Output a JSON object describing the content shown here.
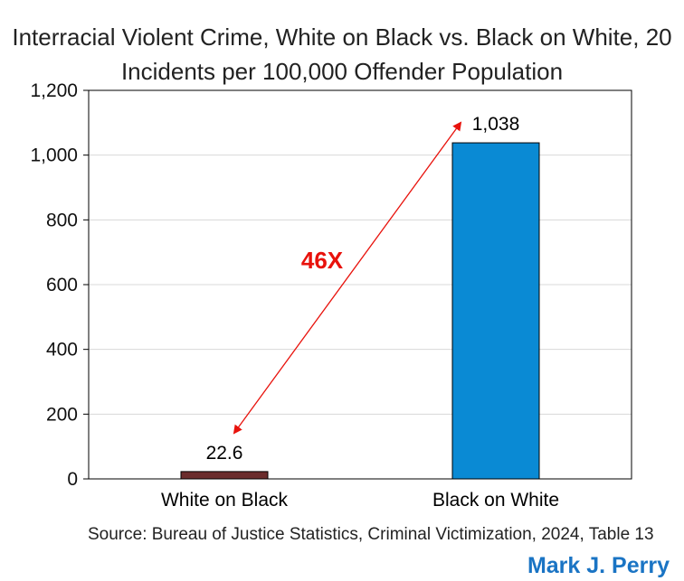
{
  "chart_data": {
    "type": "bar",
    "title": "Interracial Violent Crime, White on Black vs. Black on White, 20",
    "subtitle": "Incidents per 100,000 Offender Population",
    "categories": [
      "White on Black",
      "Black on White"
    ],
    "values": [
      22.6,
      1038
    ],
    "data_labels": [
      "22.6",
      "1,038"
    ],
    "bar_colors": [
      "#6b2c2c",
      "#0a8ad4"
    ],
    "ylim": [
      0,
      1200
    ],
    "yticks": [
      0,
      200,
      400,
      600,
      800,
      1000,
      1200
    ],
    "ytick_labels": [
      "0",
      "200",
      "400",
      "600",
      "800",
      "1,000",
      "1,200"
    ],
    "grid": true,
    "annotation": {
      "text": "46X",
      "color": "#e8120c"
    }
  },
  "source": "Source: Bureau of Justice Statistics, Criminal Victimization, 2024, Table 13",
  "author": {
    "text": "Mark J. Perry",
    "color": "#1a74c4"
  }
}
